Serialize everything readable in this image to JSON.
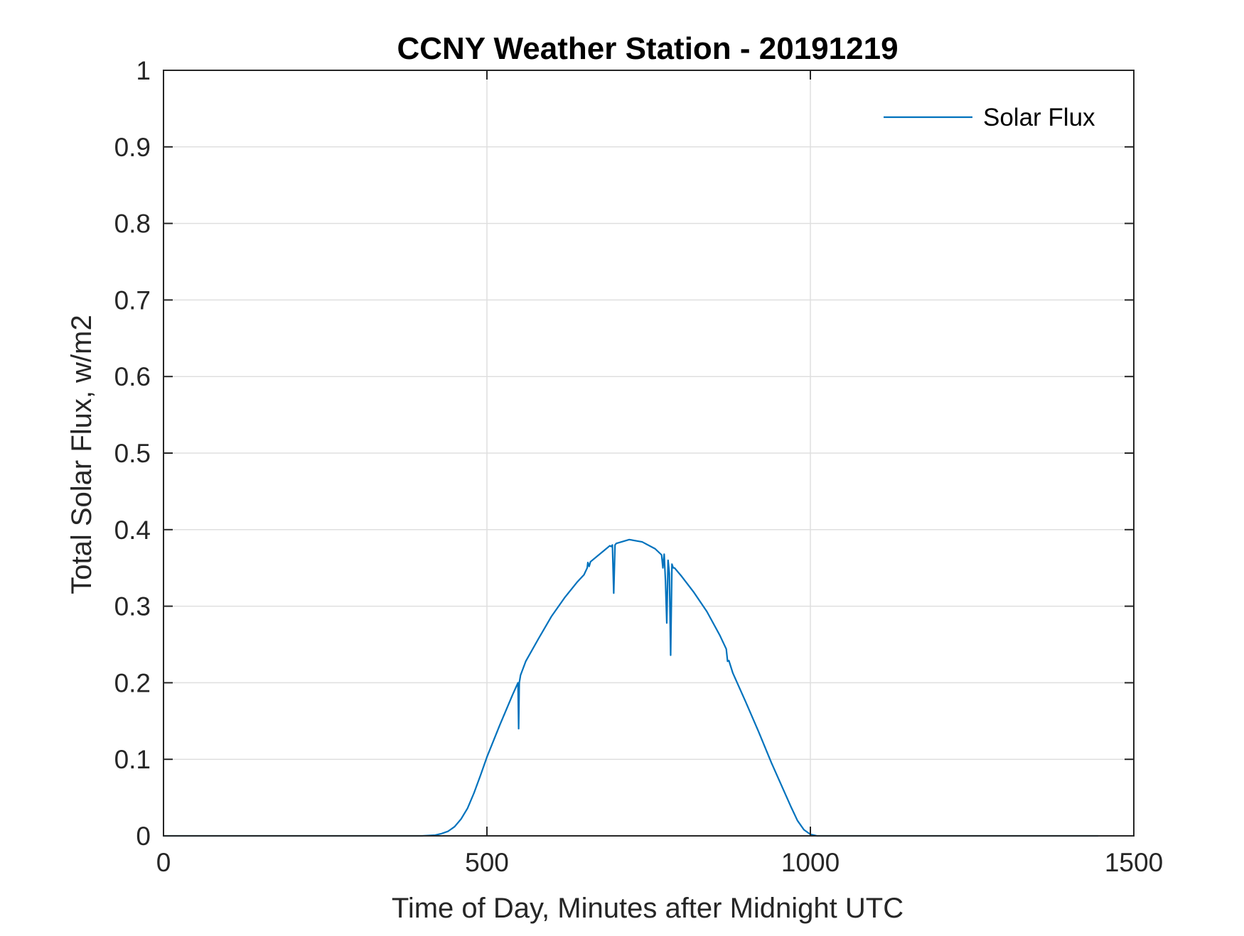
{
  "chart_data": {
    "type": "line",
    "title": "CCNY Weather Station - 20191219",
    "xlabel": "Time of Day, Minutes after Midnight UTC",
    "ylabel": "Total Solar Flux, w/m2",
    "xlim": [
      0,
      1500
    ],
    "ylim": [
      0,
      1
    ],
    "xticks": [
      0,
      500,
      1000,
      1500
    ],
    "xtick_labels": [
      "0",
      "500",
      "1000",
      "1500"
    ],
    "yticks": [
      0,
      0.1,
      0.2,
      0.3,
      0.4,
      0.5,
      0.6,
      0.7,
      0.8,
      0.9,
      1
    ],
    "ytick_labels": [
      "0",
      "0.1",
      "0.2",
      "0.3",
      "0.4",
      "0.5",
      "0.6",
      "0.7",
      "0.8",
      "0.9",
      "1"
    ],
    "grid": true,
    "legend": {
      "position": "top-right",
      "entries": [
        "Solar Flux"
      ]
    },
    "series": [
      {
        "name": "Solar Flux",
        "color": "#0072BD",
        "x": [
          0,
          100,
          200,
          300,
          400,
          420,
          430,
          440,
          450,
          460,
          470,
          480,
          490,
          500,
          520,
          540,
          548,
          549,
          550,
          551,
          552,
          560,
          580,
          600,
          620,
          640,
          650,
          655,
          656,
          658,
          660,
          680,
          690,
          692,
          694,
          696,
          698,
          700,
          720,
          740,
          760,
          770,
          772,
          774,
          776,
          778,
          780,
          782,
          784,
          786,
          788,
          790,
          800,
          820,
          840,
          860,
          870,
          872,
          874,
          880,
          900,
          920,
          940,
          960,
          970,
          980,
          990,
          1000,
          1010,
          1020,
          1100,
          1200,
          1300,
          1445
        ],
        "values": [
          0,
          0,
          0,
          0,
          0,
          0.001,
          0.003,
          0.006,
          0.012,
          0.022,
          0.036,
          0.056,
          0.079,
          0.103,
          0.145,
          0.185,
          0.2,
          0.14,
          0.2,
          0.205,
          0.21,
          0.228,
          0.258,
          0.287,
          0.311,
          0.332,
          0.341,
          0.35,
          0.357,
          0.352,
          0.358,
          0.372,
          0.379,
          0.378,
          0.38,
          0.317,
          0.38,
          0.382,
          0.387,
          0.384,
          0.375,
          0.367,
          0.35,
          0.368,
          0.333,
          0.278,
          0.36,
          0.343,
          0.236,
          0.355,
          0.35,
          0.35,
          0.34,
          0.318,
          0.293,
          0.262,
          0.244,
          0.228,
          0.229,
          0.213,
          0.175,
          0.136,
          0.095,
          0.057,
          0.038,
          0.02,
          0.008,
          0.002,
          0,
          0,
          0,
          0,
          0,
          0
        ]
      }
    ]
  }
}
